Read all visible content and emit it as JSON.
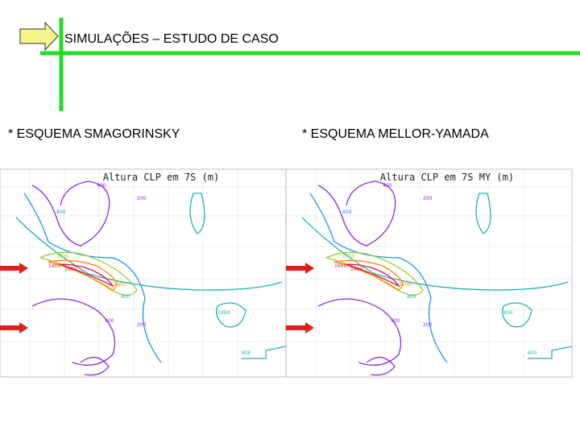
{
  "header": {
    "title": "SIMULAÇÕES – ESTUDO DE CASO"
  },
  "panels": [
    {
      "heading": "* ESQUEMA SMAGORINSKY",
      "plot_title": "Altura CLP em 7S (m)",
      "contour_labels": [
        "400",
        "200",
        "800",
        "1000",
        "1400",
        "1600",
        "1200",
        "800",
        "400",
        "200",
        "1000",
        "800"
      ]
    },
    {
      "heading": "* ESQUEMA MELLOR-YAMADA",
      "plot_title": "Altura CLP em 7S MY (m)",
      "contour_labels": [
        "400",
        "200",
        "800",
        "1000",
        "1600",
        "1400",
        "1200",
        "800",
        "400",
        "200",
        "800",
        "600"
      ]
    }
  ]
}
